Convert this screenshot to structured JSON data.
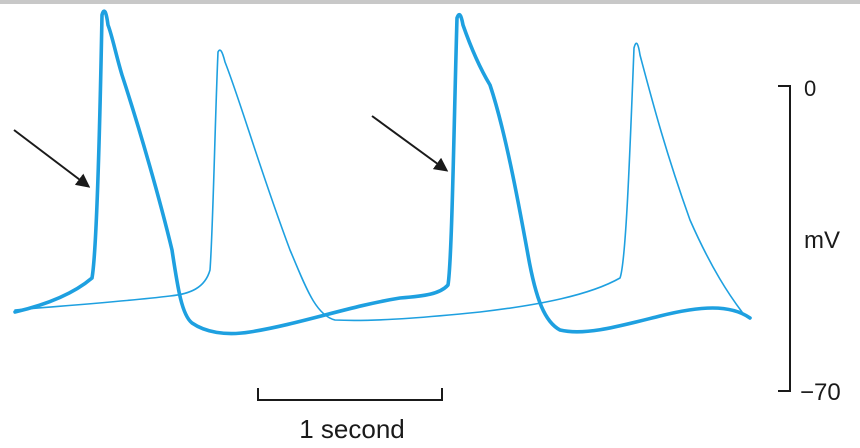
{
  "figure": {
    "scale_bar": {
      "time_label": "1 second",
      "y_top_label": "0",
      "y_bottom_label": "−70",
      "y_unit_label": "mV"
    },
    "colors": {
      "trace": "#1ea0e0",
      "ink": "#1a1a1a",
      "top_rule": "#c8c8c8"
    },
    "traces": [
      {
        "style": "thick"
      },
      {
        "style": "thin"
      }
    ],
    "arrows": [
      {
        "points_to": "upstroke-onset-thick-trace-first-spike"
      },
      {
        "points_to": "upstroke-onset-thick-trace-second-spike"
      }
    ]
  }
}
